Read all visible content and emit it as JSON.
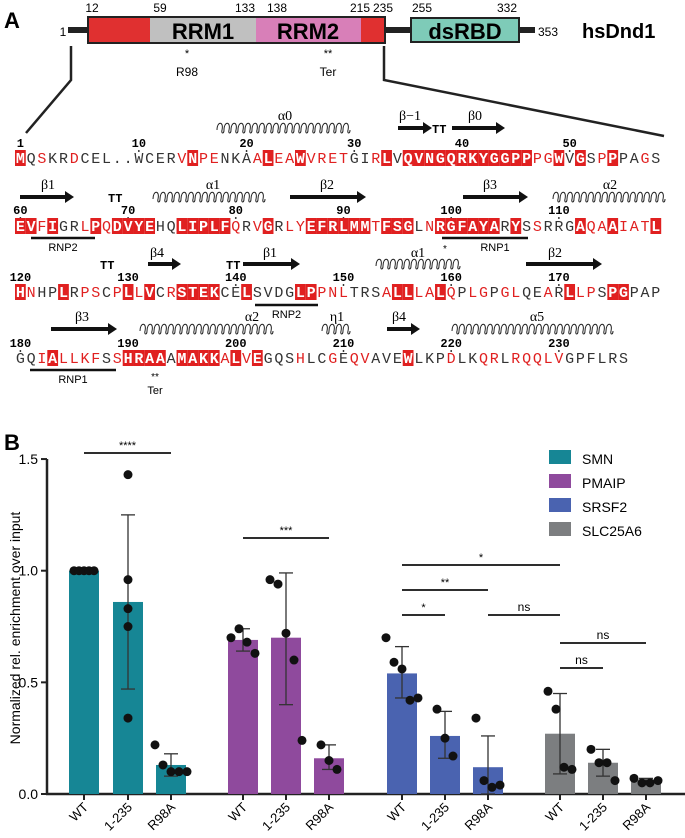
{
  "panel_a": {
    "label": "A",
    "protein": "hsDnd1",
    "start": "1",
    "end": "353",
    "boundaries": [
      "12",
      "59",
      "133",
      "138",
      "215",
      "235",
      "255",
      "332"
    ],
    "domains": [
      {
        "name": "RRM1",
        "color": "#c0c0c0"
      },
      {
        "name": "RRM2",
        "color": "#d87fb8"
      },
      {
        "name": "dsRBD",
        "color": "#7ecbb8"
      }
    ],
    "flank_color": "#e03030",
    "marks": [
      {
        "star": "*",
        "label": "R98"
      },
      {
        "star": "**",
        "label": "Ter"
      }
    ],
    "sequence_lines": [
      {
        "numbers": [
          [
            "1",
            0
          ],
          [
            "10",
            11
          ],
          [
            "20",
            21
          ],
          [
            "30",
            31
          ],
          [
            "40",
            41
          ],
          [
            "50",
            51
          ]
        ],
        "seq": "MQSKRDCEL..WCERVNPENKAALEAWVRETGIRLVQVNGQRKYGGPPPGWVGSPPPAGS",
        "mask": "bkrkkrkkkkkkkkkrbrrkkkrbrrbrrrrkkrbkbbbbbbbbbbbbrrbkbkrbkkrk"
      },
      {
        "numbers": [
          [
            "60",
            0
          ],
          [
            "70",
            10
          ],
          [
            "80",
            20
          ],
          [
            "90",
            30
          ],
          [
            "100",
            40
          ],
          [
            "110",
            50
          ]
        ],
        "seq": "EVFIGRLPQDVYEHQLIPLFQRVGRLYEFRLMMTFSGLNRGFAYARYSSRRGAQAAIATL",
        "mask": "bbrbkkrbrbbbbkkbbbbbrkrbkrrbbbbbbrbbbkrbbbbbbkbkrkkkbrrbrrrb"
      },
      {
        "numbers": [
          [
            "120",
            0
          ],
          [
            "130",
            10
          ],
          [
            "140",
            20
          ],
          [
            "150",
            30
          ],
          [
            "160",
            40
          ],
          [
            "170",
            50
          ]
        ],
        "seq": "HNHPLRPSCPLLVCRSTEKCELSVDGLPPNLTRSALLLALQPLGPGLQEARLLPSPGPAP",
        "mask": "brkkbkrrkrbrbkrbbbbkkbkkkkbbrrrkkkrbbrrbrkrrkrrkkrkbrrkbbkkk"
      },
      {
        "numbers": [
          [
            "180",
            0
          ],
          [
            "190",
            10
          ],
          [
            "200",
            20
          ],
          [
            "210",
            30
          ],
          [
            "220",
            40
          ],
          [
            "230",
            50
          ]
        ],
        "seq": "GQIALLKFSSHRAAAMAKKALVEGQSHLCGEQVAVEWLKPDLKQRLRQQLVGPFLRS",
        "mask": "kkrbrrrrkrbbbbkbbbbrbrbkkkrkkrkrrkkkbkkkrkkrrkrrrrrkkkkkk"
      }
    ],
    "secondary_structure": {
      "helices": [
        "α0",
        "α1",
        "α2",
        "α1",
        "α2",
        "η1",
        "α5"
      ],
      "strands": [
        "β−1",
        "β0",
        "β1",
        "β2",
        "β3",
        "β4",
        "β1",
        "β2",
        "β3",
        "β4"
      ],
      "turns": "TT"
    },
    "motifs": [
      "RNP2",
      "RNP1",
      "RNP2",
      "RNP1"
    ],
    "seq_marks": [
      "*",
      "**",
      "Ter"
    ]
  },
  "panel_b": {
    "label": "B"
  },
  "chart_data": {
    "type": "bar",
    "ylabel": "Normalized rel. enrichment over input",
    "ylim": [
      0,
      1.5
    ],
    "yticks": [
      "0.0",
      "0.5",
      "1.0",
      "1.5"
    ],
    "legend_position": "top-right",
    "categories": [
      "WT",
      "1-235",
      "R98A"
    ],
    "series": [
      {
        "name": "SMN",
        "color": "#168695",
        "values": [
          1.0,
          0.86,
          0.13
        ],
        "err": [
          [
            1.0,
            1.0
          ],
          [
            0.47,
            1.25
          ],
          [
            0.08,
            0.18
          ]
        ],
        "points": [
          [
            1,
            1,
            1,
            1,
            1
          ],
          [
            1.43,
            0.96,
            0.83,
            0.75,
            0.34
          ],
          [
            0.22,
            0.13,
            0.1,
            0.1,
            0.1
          ]
        ]
      },
      {
        "name": "PMAIP",
        "color": "#8f4a9d",
        "values": [
          0.69,
          0.7,
          0.16
        ],
        "err": [
          [
            0.64,
            0.74
          ],
          [
            0.4,
            0.99
          ],
          [
            0.11,
            0.22
          ]
        ],
        "points": [
          [
            0.7,
            0.74,
            0.68,
            0.63
          ],
          [
            0.96,
            0.94,
            0.72,
            0.6,
            0.24
          ],
          [
            0.22,
            0.15,
            0.11
          ]
        ]
      },
      {
        "name": "SRSF2",
        "color": "#4a63b0",
        "values": [
          0.54,
          0.26,
          0.12
        ],
        "err": [
          [
            0.43,
            0.66
          ],
          [
            0.16,
            0.37
          ],
          [
            0.0,
            0.26
          ]
        ],
        "points": [
          [
            0.7,
            0.59,
            0.56,
            0.42,
            0.43
          ],
          [
            0.38,
            0.25,
            0.17
          ],
          [
            0.34,
            0.06,
            0.03,
            0.04
          ]
        ]
      },
      {
        "name": "SLC25A6",
        "color": "#7c7e80",
        "values": [
          0.27,
          0.14,
          0.06
        ],
        "err": [
          [
            0.09,
            0.45
          ],
          [
            0.08,
            0.2
          ],
          [
            0.05,
            0.07
          ]
        ],
        "points": [
          [
            0.46,
            0.38,
            0.12,
            0.11
          ],
          [
            0.2,
            0.14,
            0.14,
            0.06
          ],
          [
            0.07,
            0.05,
            0.05,
            0.06
          ]
        ]
      }
    ],
    "significance": [
      {
        "from": [
          0,
          0
        ],
        "to": [
          0,
          2
        ],
        "label": "****"
      },
      {
        "from": [
          1,
          0
        ],
        "to": [
          1,
          2
        ],
        "label": "***"
      },
      {
        "from": [
          2,
          0
        ],
        "to": [
          3,
          0
        ],
        "label": "*"
      },
      {
        "from": [
          2,
          0
        ],
        "to": [
          2,
          2
        ],
        "label": "**"
      },
      {
        "from": [
          2,
          0
        ],
        "to": [
          2,
          1
        ],
        "label": "*"
      },
      {
        "from": [
          2,
          2
        ],
        "to": [
          3,
          0
        ],
        "label": "ns"
      },
      {
        "from": [
          3,
          0
        ],
        "to": [
          3,
          2
        ],
        "label": "ns"
      },
      {
        "from": [
          3,
          0
        ],
        "to": [
          3,
          1
        ],
        "label": "ns"
      }
    ]
  }
}
